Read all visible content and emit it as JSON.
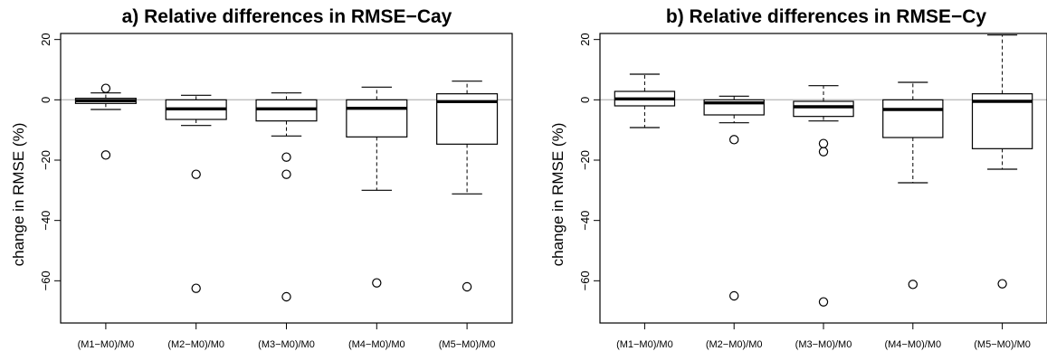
{
  "chart_data": [
    {
      "type": "box",
      "title": "a) Relative differences in RMSE−Cay",
      "ylabel": "change in RMSE (%)",
      "xlabel": "",
      "ylim": [
        -74,
        22
      ],
      "yticks": [
        20,
        0,
        -20,
        -40,
        -60
      ],
      "reference_line": 0,
      "reference_line_color": "#bebebe",
      "grid": false,
      "categories": [
        "(M1−M0)/M0",
        "(M2−M0)/M0",
        "(M3−M0)/M0",
        "(M4−M0)/M0",
        "(M5−M0)/M0"
      ],
      "boxes": [
        {
          "whisker_low": -3.2,
          "q1": -1.2,
          "median": -0.3,
          "q3": 0.5,
          "whisker_high": 2.3,
          "outliers": [
            3.8,
            -18.3
          ]
        },
        {
          "whisker_low": -8.5,
          "q1": -6.5,
          "median": -3.0,
          "q3": 0.0,
          "whisker_high": 1.5,
          "outliers": [
            -24.7,
            -62.5
          ]
        },
        {
          "whisker_low": -12.0,
          "q1": -7.0,
          "median": -3.0,
          "q3": 0.0,
          "whisker_high": 2.3,
          "outliers": [
            -19.0,
            -24.7,
            -65.3
          ]
        },
        {
          "whisker_low": -30.0,
          "q1": -12.3,
          "median": -2.8,
          "q3": 0.0,
          "whisker_high": 4.2,
          "outliers": [
            -60.7
          ]
        },
        {
          "whisker_low": -31.2,
          "q1": -14.7,
          "median": -0.6,
          "q3": 2.0,
          "whisker_high": 6.2,
          "outliers": [
            -62.0
          ]
        }
      ]
    },
    {
      "type": "box",
      "title": "b) Relative differences in RMSE−Cy",
      "ylabel": "change in RMSE (%)",
      "xlabel": "",
      "ylim": [
        -74,
        22
      ],
      "yticks": [
        20,
        0,
        -20,
        -40,
        -60
      ],
      "reference_line": 0,
      "reference_line_color": "#bebebe",
      "grid": false,
      "categories": [
        "(M1−M0)/M0",
        "(M2−M0)/M0",
        "(M3−M0)/M0",
        "(M4−M0)/M0",
        "(M5−M0)/M0"
      ],
      "boxes": [
        {
          "whisker_low": -9.2,
          "q1": -2.0,
          "median": 0.3,
          "q3": 2.8,
          "whisker_high": 8.5,
          "outliers": []
        },
        {
          "whisker_low": -7.6,
          "q1": -5.0,
          "median": -1.0,
          "q3": 0.0,
          "whisker_high": 1.2,
          "outliers": [
            -13.2,
            -65.0
          ]
        },
        {
          "whisker_low": -7.0,
          "q1": -5.5,
          "median": -2.3,
          "q3": -0.5,
          "whisker_high": 4.7,
          "outliers": [
            -14.5,
            -17.2,
            -67.0
          ]
        },
        {
          "whisker_low": -27.5,
          "q1": -12.5,
          "median": -3.2,
          "q3": 0.0,
          "whisker_high": 5.8,
          "outliers": [
            -61.2
          ]
        },
        {
          "whisker_low": -23.0,
          "q1": -16.2,
          "median": -0.5,
          "q3": 2.0,
          "whisker_high": 21.5,
          "outliers": [
            -61.0
          ]
        }
      ]
    }
  ]
}
